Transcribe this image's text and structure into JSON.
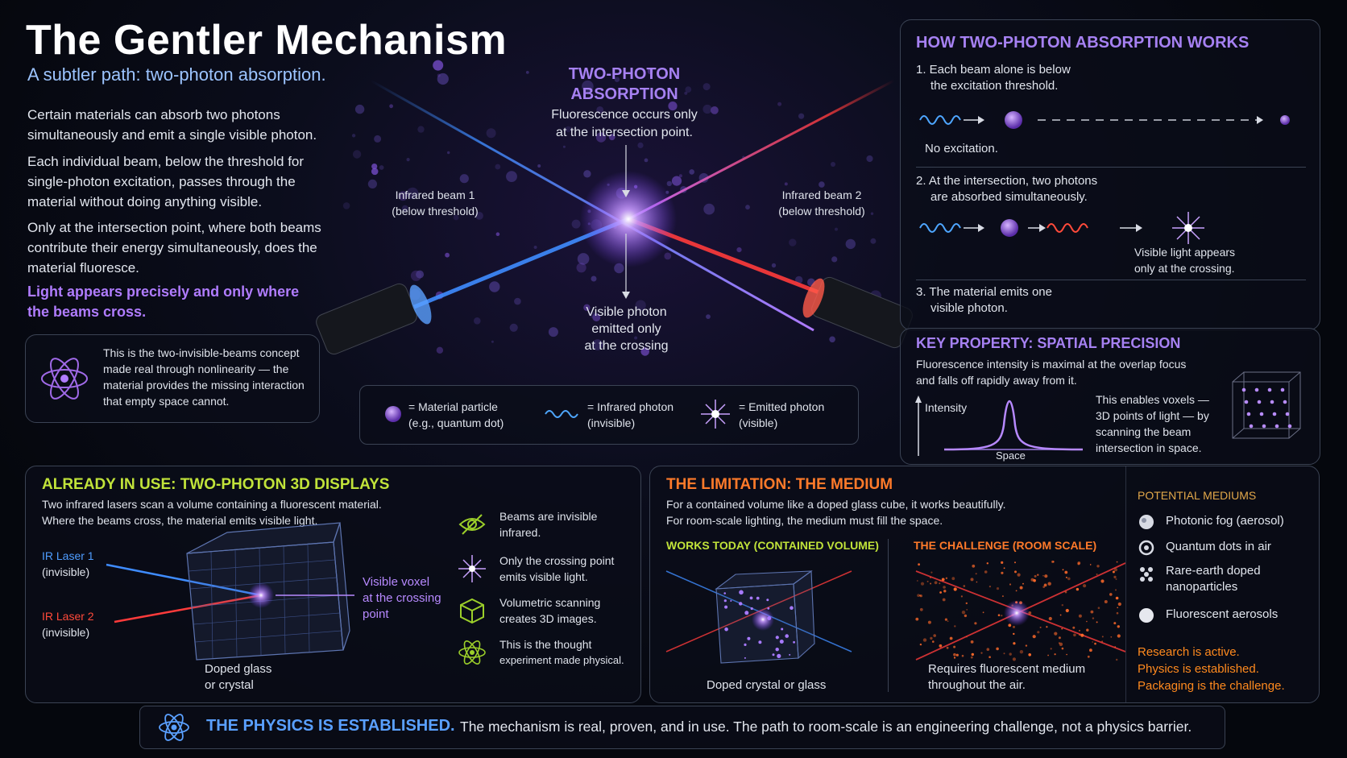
{
  "header": {
    "title": "The Gentler Mechanism",
    "subtitle": "A subtler path: two-photon absorption.",
    "para1": "Certain materials can absorb two photons simultaneously and emit a single visible photon.",
    "para2": "Each individual beam, below the threshold for single-photon excitation, passes through the material without doing anything visible.",
    "para3": "Only at the intersection point, where both beams contribute their energy simultaneously, does the material fluoresce.",
    "highlight": "Light appears precisely and only where the beams cross.",
    "concept_note": "This is the two-invisible-beams concept made real through nonlinearity — the material provides the missing interaction that empty space cannot."
  },
  "center": {
    "heading_line1": "TWO-PHOTON",
    "heading_line2": "ABSORPTION",
    "caption_line1": "Fluorescence occurs only",
    "caption_line2": "at the intersection point.",
    "beam1_line1": "Infrared beam 1",
    "beam1_line2": "(below threshold)",
    "beam2_line1": "Infrared beam 2",
    "beam2_line2": "(below threshold)",
    "visible_line1": "Visible photon",
    "visible_line2": "emitted only",
    "visible_line3": "at the crossing",
    "legend": {
      "particle_line1": "= Material particle",
      "particle_line2": "(e.g., quantum dot)",
      "ir_line1": "= Infrared photon",
      "ir_line2": "(invisible)",
      "emitted_line1": "= Emitted photon",
      "emitted_line2": "(visible)"
    }
  },
  "how_it_works": {
    "heading": "HOW TWO-PHOTON ABSORPTION WORKS",
    "step1_line1": "1. Each beam alone is below",
    "step1_line2": "the excitation threshold.",
    "step1_result": "No excitation.",
    "step2_line1": "2. At the intersection, two photons",
    "step2_line2": "are absorbed simultaneously.",
    "step2_result_line1": "Visible light appears",
    "step2_result_line2": "only at the crossing.",
    "step3_line1": "3. The material emits one",
    "step3_line2": "visible photon."
  },
  "key_property": {
    "heading": "KEY PROPERTY: SPATIAL PRECISION",
    "desc_line1": "Fluorescence intensity is maximal at the overlap focus",
    "desc_line2": "and falls off rapidly away from it.",
    "y_label": "Intensity",
    "x_label": "Space",
    "voxel_line1": "This enables voxels —",
    "voxel_line2": "3D points of light — by",
    "voxel_line3": "scanning the beam",
    "voxel_line4": "intersection in space."
  },
  "displays": {
    "heading": "ALREADY IN USE: TWO-PHOTON 3D DISPLAYS",
    "desc_line1": "Two infrared lasers scan a volume containing a fluorescent material.",
    "desc_line2": "Where the beams cross, the material emits visible light.",
    "laser1": "IR Laser 1",
    "laser1_sub": "(invisible)",
    "laser2": "IR Laser 2",
    "laser2_sub": "(invisible)",
    "voxel_line1": "Visible voxel",
    "voxel_line2": "at the crossing",
    "voxel_line3": "point",
    "glass_line1": "Doped glass",
    "glass_line2": "or crystal",
    "features": [
      {
        "icon": "eye-slash-icon",
        "line1": "Beams are invisible",
        "line2": "infrared."
      },
      {
        "icon": "sparkle-icon",
        "line1": "Only the crossing point",
        "line2": "emits visible light."
      },
      {
        "icon": "cube-icon",
        "line1": "Volumetric scanning",
        "line2": "creates 3D images."
      },
      {
        "icon": "atom-icon",
        "line1": "This is the thought",
        "line2": "experiment made physical."
      }
    ]
  },
  "limitation": {
    "heading": "THE LIMITATION: THE MEDIUM",
    "desc_line1": "For a contained volume like a doped glass cube, it works beautifully.",
    "desc_line2": "For room-scale lighting, the medium must fill the space.",
    "works_heading": "WORKS TODAY (CONTAINED VOLUME)",
    "works_caption": "Doped crystal or glass",
    "challenge_heading": "THE CHALLENGE (ROOM SCALE)",
    "challenge_line1": "Requires fluorescent medium",
    "challenge_line2": "throughout the air.",
    "mediums_heading": "POTENTIAL MEDIUMS",
    "mediums": [
      {
        "icon": "fog-icon",
        "line1": "Photonic fog (aerosol)",
        "line2": ""
      },
      {
        "icon": "quantum-dot-icon",
        "line1": "Quantum dots in air",
        "line2": ""
      },
      {
        "icon": "nanoparticle-icon",
        "line1": "Rare-earth doped",
        "line2": "nanoparticles"
      },
      {
        "icon": "aerosol-icon",
        "line1": "Fluorescent aerosols",
        "line2": ""
      }
    ],
    "status_line1": "Research is active.",
    "status_line2": "Physics is established.",
    "status_line3": "Packaging is the challenge."
  },
  "footer": {
    "bold": "THE PHYSICS IS ESTABLISHED.",
    "text": "The mechanism is real, proven, and in use. The path to room-scale is an engineering challenge, not a physics barrier."
  },
  "colors": {
    "accent_purple": "#a681f2",
    "accent_green": "#c1e33a",
    "accent_orange": "#ff7a2a",
    "beam_blue": "#3f8cff",
    "beam_red": "#ff3b3b",
    "subtitle_blue": "#9cc4ff"
  }
}
